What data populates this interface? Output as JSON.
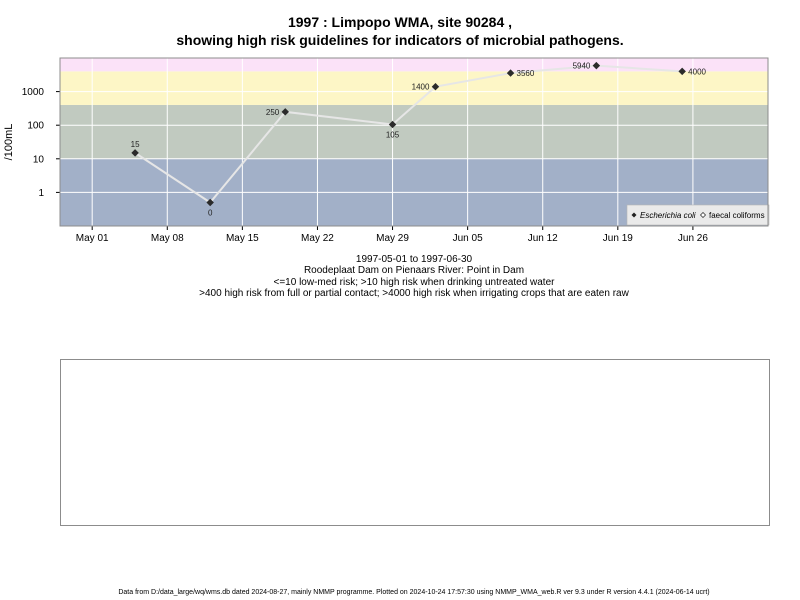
{
  "chart_data": {
    "type": "line",
    "title": "1997 : Limpopo WMA, site 90284 ,",
    "subtitle": "showing high risk guidelines for indicators of microbial pathogens.",
    "ylabel": "/100mL",
    "y_scale": "log",
    "ylim": [
      0.1,
      10000
    ],
    "y_ticks": [
      1,
      10,
      100,
      1000
    ],
    "y_tick_labels": [
      "1",
      "10",
      "100",
      "1000"
    ],
    "x_ticks": [
      "1997-05-01",
      "1997-05-08",
      "1997-05-15",
      "1997-05-22",
      "1997-05-29",
      "1997-06-05",
      "1997-06-12",
      "1997-06-19",
      "1997-06-26"
    ],
    "x_tick_labels": [
      "May 01",
      "May 08",
      "May 15",
      "May 22",
      "May 29",
      "Jun 05",
      "Jun 12",
      "Jun 19",
      "Jun 26"
    ],
    "xlim": [
      "1997-04-28",
      "1997-07-03"
    ],
    "grid": true,
    "bands": [
      {
        "from": 0.1,
        "to": 10,
        "color": "#a2b0c8"
      },
      {
        "from": 10,
        "to": 400,
        "color": "#c1cac0"
      },
      {
        "from": 400,
        "to": 4000,
        "color": "#fdf6c6"
      },
      {
        "from": 4000,
        "to": 10000,
        "color": "#fbe2f8"
      }
    ],
    "series": [
      {
        "name": "Escherichia coli",
        "marker": "filled-diamond",
        "line_color": "#e6e6e6",
        "points": [
          {
            "x": "1997-05-05",
            "y": 15,
            "label": "15",
            "label_pos": "above"
          },
          {
            "x": "1997-05-12",
            "y": 0.5,
            "label": "0",
            "label_pos": "below"
          },
          {
            "x": "1997-05-19",
            "y": 250,
            "label": "250",
            "label_pos": "left"
          },
          {
            "x": "1997-05-29",
            "y": 105,
            "label": "105",
            "label_pos": "below"
          },
          {
            "x": "1997-06-02",
            "y": 1400,
            "label": "1400",
            "label_pos": "left"
          },
          {
            "x": "1997-06-09",
            "y": 3560,
            "label": "3560",
            "label_pos": "right"
          },
          {
            "x": "1997-06-17",
            "y": 5940,
            "label": "5940",
            "label_pos": "left"
          },
          {
            "x": "1997-06-25",
            "y": 4000,
            "label": "4000",
            "label_pos": "right"
          }
        ]
      }
    ],
    "legend": {
      "position": "bottom-right",
      "entries": [
        {
          "label": "Escherichia coli",
          "marker": "filled-diamond",
          "italic": true
        },
        {
          "label": "faecal coliforms",
          "marker": "open-diamond",
          "italic": false
        }
      ]
    },
    "caption_lines": [
      "1997-05-01 to 1997-06-30",
      "Roodeplaat Dam on Pienaars River: Point in Dam",
      "<=10 low-med risk; >10 high risk when drinking untreated water",
      ">400 high risk from full or partial contact; >4000 high risk when irrigating crops that are eaten raw"
    ],
    "footer": "Data from D:/data_large/wq/wms.db dated 2024-08-27, mainly NMMP programme. Plotted on 2024-10-24 17:57:30 using NMMP_WMA_web.R ver 9.3 under R version 4.4.1 (2024-06-14 ucrt)"
  }
}
